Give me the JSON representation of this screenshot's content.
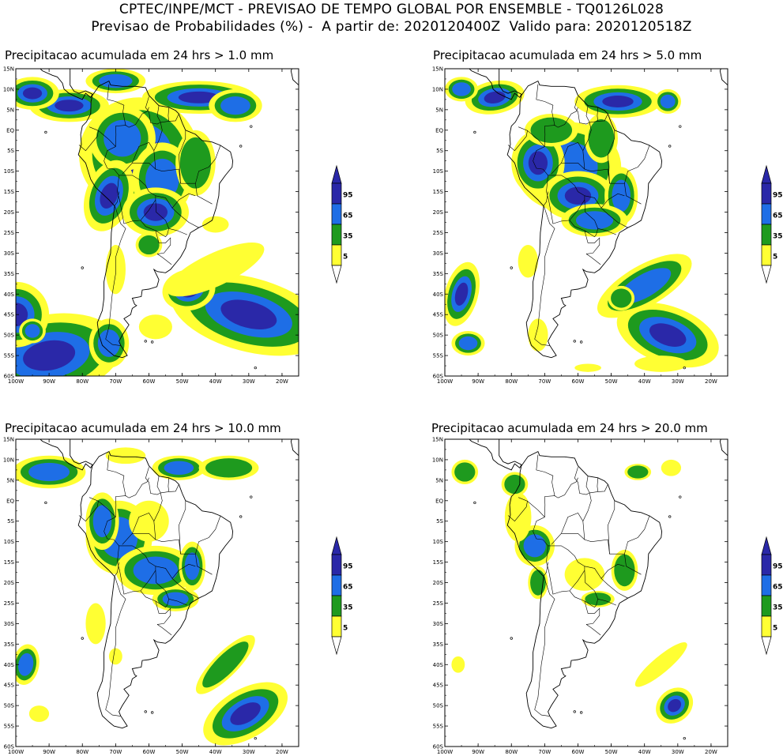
{
  "header": {
    "line1": "CPTEC/INPE/MCT - PREVISAO DE TEMPO GLOBAL POR ENSEMBLE - TQ0126L028",
    "line2": "Previsao de Probabilidades (%) -  A partir de: 2020120400Z  Valido para: 2020120518Z"
  },
  "colors": {
    "yellow": "#ffff33",
    "green": "#1e9a1e",
    "blue": "#1e6ee6",
    "darkblue": "#2a28a8",
    "land_line": "#000000"
  },
  "axes": {
    "lat_labels": [
      "15N",
      "10N",
      "5N",
      "EQ",
      "5S",
      "10S",
      "15S",
      "20S",
      "25S",
      "30S",
      "35S",
      "40S",
      "45S",
      "50S",
      "55S",
      "60S"
    ],
    "lon_labels": [
      "100W",
      "90W",
      "80W",
      "70W",
      "60W",
      "50W",
      "40W",
      "30W",
      "20W"
    ]
  },
  "colorbar": {
    "labels": [
      "95",
      "65",
      "35",
      "5"
    ]
  },
  "panels": [
    {
      "title": "Precipitacao acumulada em 24 hrs > 1.0 mm"
    },
    {
      "title": "Precipitacao acumulada em 24 hrs > 5.0 mm"
    },
    {
      "title": "Precipitacao acumulada em 24 hrs > 10.0 mm"
    },
    {
      "title": "Precipitacao acumulada em 24 hrs > 20.0 mm"
    }
  ]
}
